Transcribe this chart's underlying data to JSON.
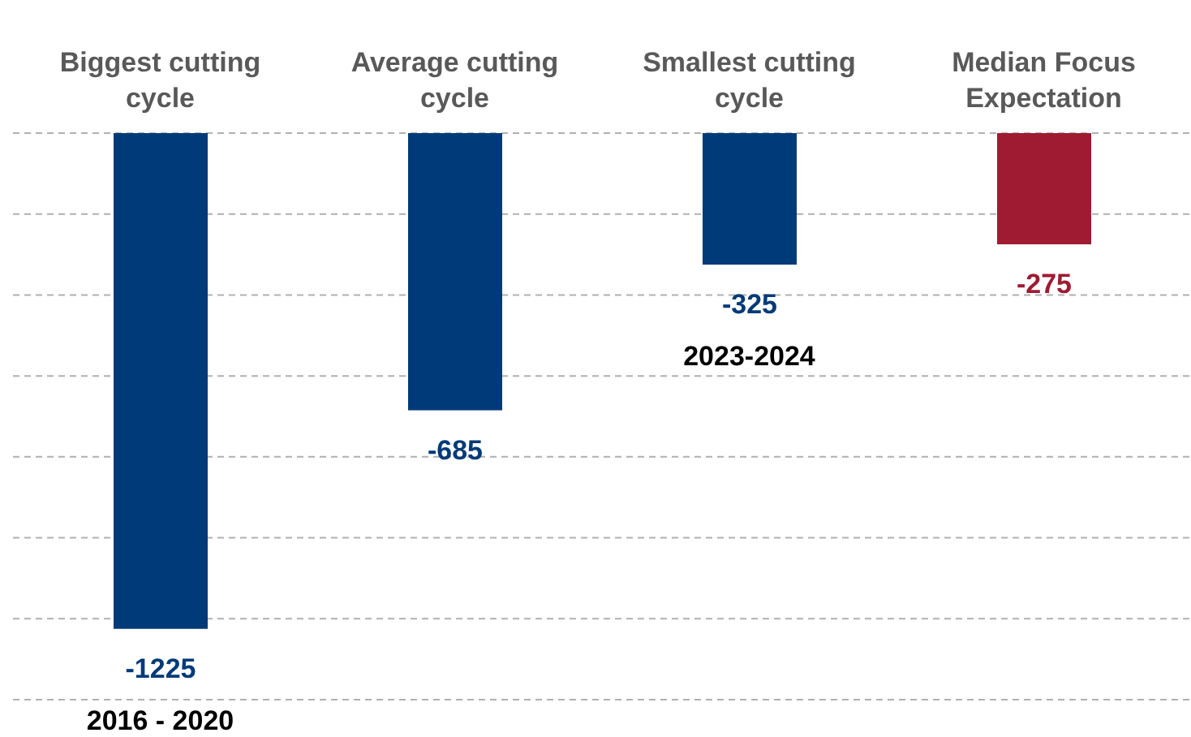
{
  "chart_data": {
    "type": "bar",
    "categories": [
      "Biggest cutting cycle",
      "Average cutting cycle",
      "Smallest cutting cycle",
      "Median Focus Expectation"
    ],
    "values": [
      -1225,
      -685,
      -325,
      -275
    ],
    "colors": [
      "#003a78",
      "#003a78",
      "#003a78",
      "#9e1b32"
    ],
    "ylim": [
      -1400,
      0
    ],
    "yticks": [
      {
        "value": -1400,
        "label": null
      },
      {
        "value": -1200,
        "label": null
      },
      {
        "value": -1000,
        "label": null
      },
      {
        "value": -800,
        "label": null
      },
      {
        "value": -600,
        "label": null
      },
      {
        "value": -400,
        "label": null
      },
      {
        "value": -200,
        "label": null
      },
      {
        "value": 0,
        "label": null
      }
    ],
    "tick_labels": "x",
    "grid": "y",
    "data_labels": true,
    "annotations": [
      {
        "text": "2016 - 2020",
        "x": "Biggest cutting cycle",
        "y": -1225
      },
      {
        "text": "2023-2024",
        "x": "Smallest cutting cycle",
        "y": -325
      }
    ]
  }
}
